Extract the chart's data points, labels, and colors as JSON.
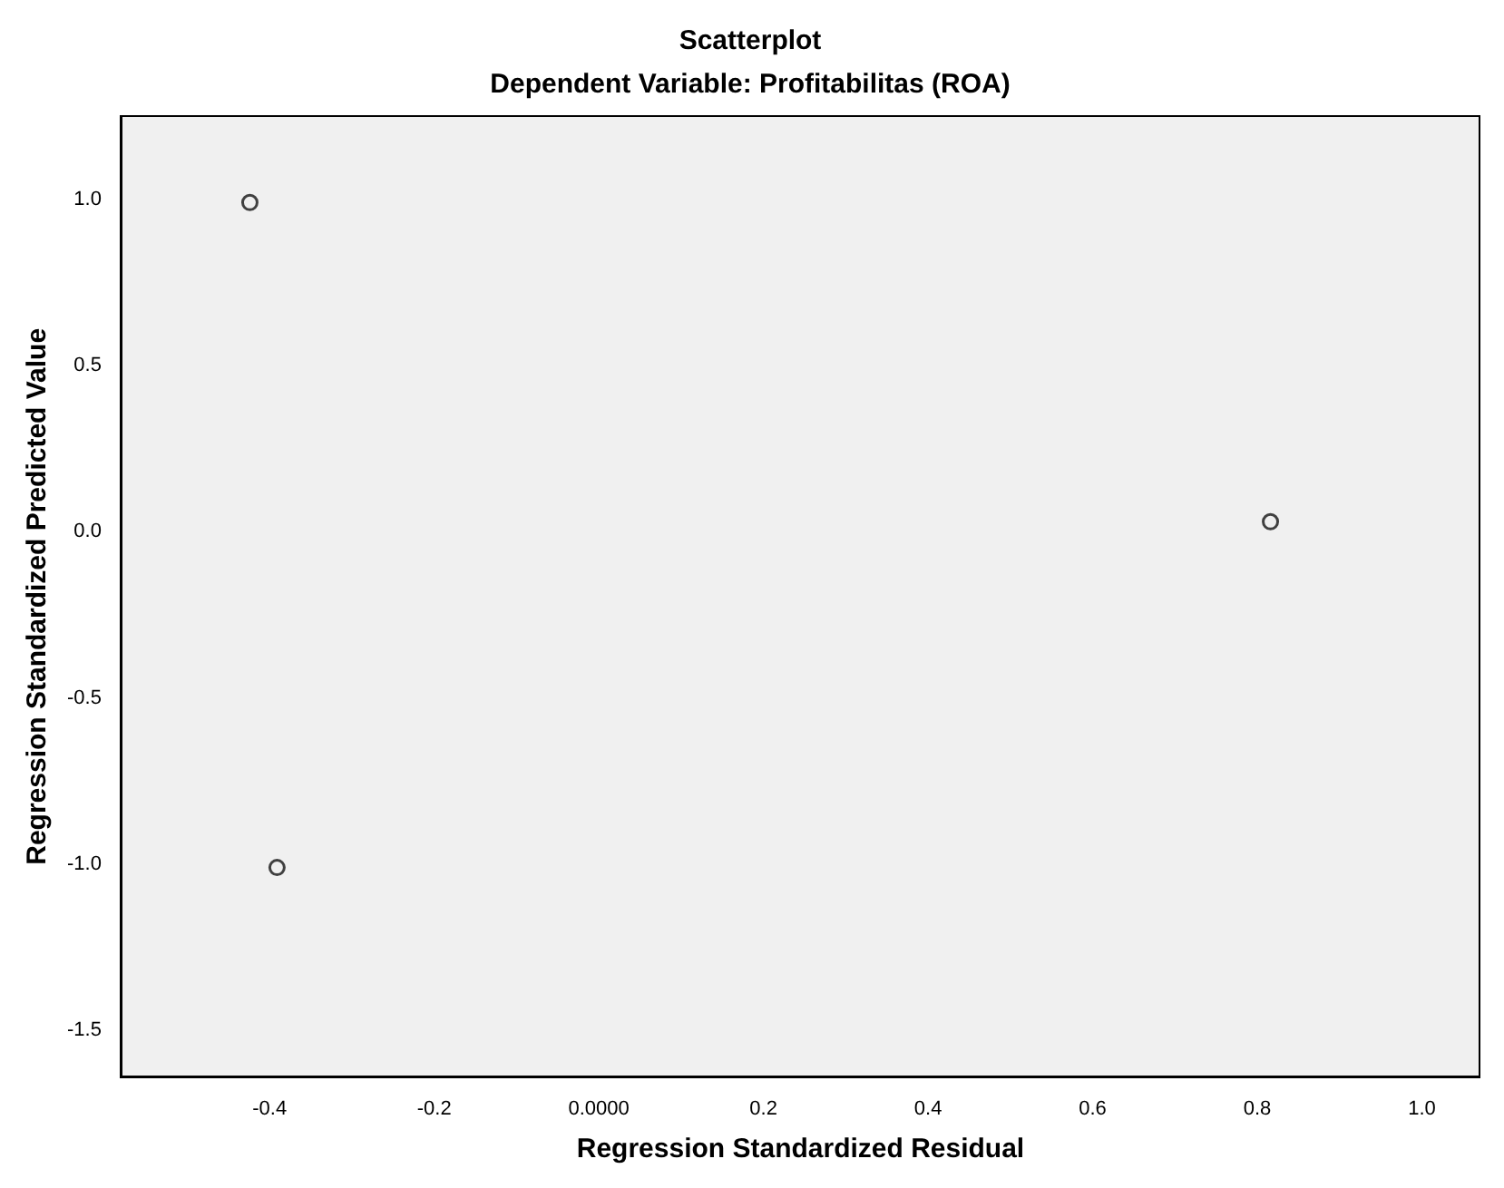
{
  "chart_data": {
    "type": "scatter",
    "title": "Scatterplot",
    "subtitle": "Dependent Variable: Profitabilitas (ROA)",
    "xlabel": "Regression Standardized Residual",
    "ylabel": "Regression Standardized Predicted Value",
    "series": [
      {
        "color": "#404040",
        "x": [
          -0.424,
          -0.391,
          0.816
        ],
        "values": [
          0.99,
          -1.01,
          0.03
        ]
      }
    ],
    "xlim": [
      -0.58,
      1.07
    ],
    "xticks": [
      -0.4,
      -0.2,
      {
        "value": 0,
        "label": "0.0000"
      },
      0.2,
      0.4,
      0.6,
      0.8,
      {
        "value": 1.0,
        "label": "1.0"
      }
    ],
    "ylim": [
      -1.64,
      1.25
    ],
    "yticks": [
      {
        "value": -1.5,
        "label": "-1.5"
      },
      {
        "value": -1.0,
        "label": "-1.0"
      },
      {
        "value": -0.5,
        "label": "-0.5"
      },
      {
        "value": 0,
        "label": "0.0"
      },
      {
        "value": 0.5,
        "label": "0.5"
      },
      {
        "value": 1.0,
        "label": "1.0"
      }
    ],
    "grid": false,
    "legend": false,
    "marker": "circle"
  }
}
